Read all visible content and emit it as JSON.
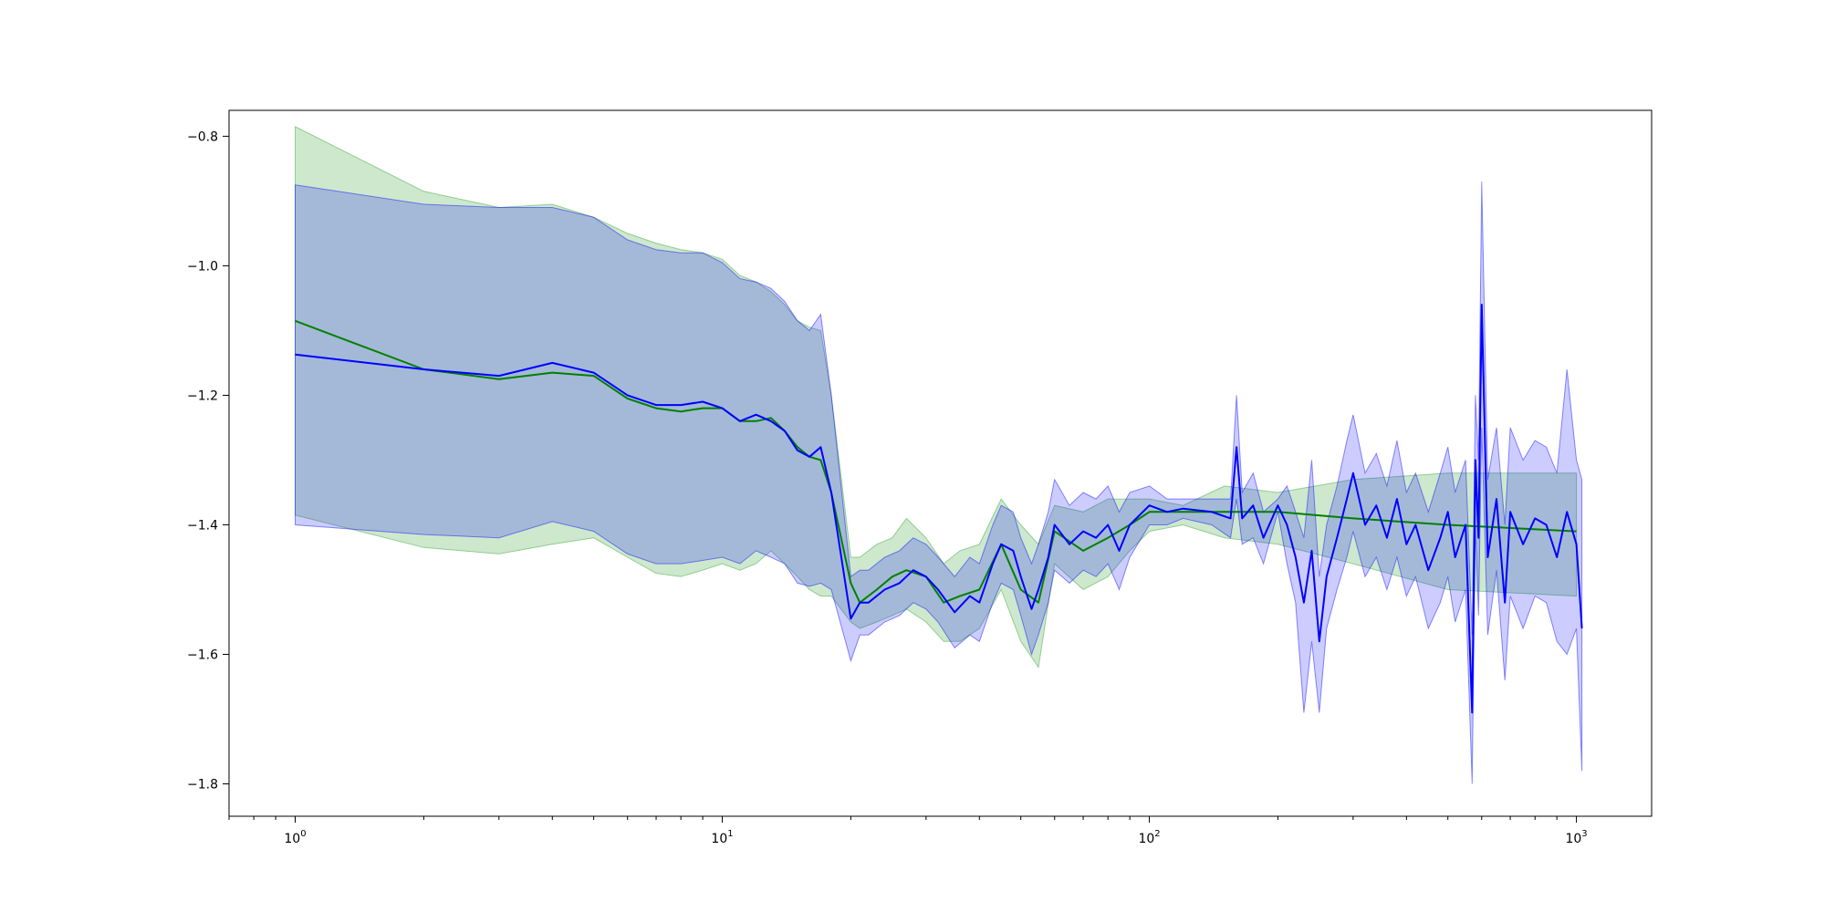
{
  "chart_data": {
    "type": "line",
    "title": "",
    "xlabel": "",
    "ylabel": "",
    "xscale": "log",
    "xlim": [
      0.7,
      1500
    ],
    "ylim": [
      -1.85,
      -0.76
    ],
    "grid": false,
    "legend": "none",
    "x_ticks": [
      {
        "value": 1,
        "base": "10",
        "exp": "0"
      },
      {
        "value": 10,
        "base": "10",
        "exp": "1"
      },
      {
        "value": 100,
        "base": "10",
        "exp": "2"
      },
      {
        "value": 1000,
        "base": "10",
        "exp": "3"
      }
    ],
    "y_ticks": [
      {
        "value": -0.8,
        "label": "−0.8"
      },
      {
        "value": -1.0,
        "label": "−1.0"
      },
      {
        "value": -1.2,
        "label": "−1.2"
      },
      {
        "value": -1.4,
        "label": "−1.4"
      },
      {
        "value": -1.6,
        "label": "−1.6"
      },
      {
        "value": -1.8,
        "label": "−1.8"
      }
    ],
    "series": [
      {
        "color": "#008000",
        "band_color": "#2ca02c",
        "band_opacity": 0.24,
        "x": [
          1,
          2,
          3,
          4,
          5,
          6,
          7,
          8,
          9,
          10,
          11,
          12,
          13,
          14,
          15,
          16,
          17,
          18,
          20,
          21,
          23,
          25,
          27,
          30,
          33,
          36,
          40,
          45,
          50,
          55,
          60,
          70,
          80,
          90,
          100,
          120,
          150,
          200,
          300,
          500,
          1000
        ],
        "y": [
          -1.085,
          -1.16,
          -1.175,
          -1.165,
          -1.17,
          -1.205,
          -1.22,
          -1.225,
          -1.22,
          -1.22,
          -1.24,
          -1.24,
          -1.235,
          -1.255,
          -1.28,
          -1.295,
          -1.3,
          -1.35,
          -1.49,
          -1.52,
          -1.5,
          -1.48,
          -1.47,
          -1.48,
          -1.52,
          -1.51,
          -1.5,
          -1.43,
          -1.5,
          -1.52,
          -1.41,
          -1.44,
          -1.42,
          -1.4,
          -1.38,
          -1.38,
          -1.38,
          -1.38,
          -1.39,
          -1.4,
          -1.41
        ],
        "upper": [
          -0.785,
          -0.885,
          -0.91,
          -0.905,
          -0.925,
          -0.95,
          -0.965,
          -0.975,
          -0.98,
          -0.99,
          -1.015,
          -1.025,
          -1.04,
          -1.06,
          -1.085,
          -1.095,
          -1.1,
          -1.2,
          -1.45,
          -1.45,
          -1.43,
          -1.42,
          -1.39,
          -1.42,
          -1.46,
          -1.44,
          -1.43,
          -1.36,
          -1.4,
          -1.43,
          -1.37,
          -1.38,
          -1.36,
          -1.36,
          -1.36,
          -1.37,
          -1.34,
          -1.35,
          -1.33,
          -1.32,
          -1.32
        ],
        "lower": [
          -1.385,
          -1.435,
          -1.445,
          -1.43,
          -1.42,
          -1.45,
          -1.475,
          -1.48,
          -1.47,
          -1.46,
          -1.47,
          -1.46,
          -1.44,
          -1.46,
          -1.48,
          -1.5,
          -1.51,
          -1.51,
          -1.55,
          -1.56,
          -1.55,
          -1.54,
          -1.53,
          -1.55,
          -1.58,
          -1.58,
          -1.56,
          -1.5,
          -1.58,
          -1.62,
          -1.46,
          -1.5,
          -1.48,
          -1.44,
          -1.41,
          -1.4,
          -1.42,
          -1.43,
          -1.46,
          -1.5,
          -1.51
        ]
      },
      {
        "color": "#0000ff",
        "band_color": "#0000ff",
        "band_opacity": 0.2,
        "x": [
          1,
          2,
          3,
          4,
          5,
          6,
          7,
          8,
          9,
          10,
          11,
          12,
          13,
          14,
          15,
          16,
          17,
          18,
          20,
          21,
          22,
          24,
          26,
          28,
          30,
          32,
          35,
          38,
          40,
          43,
          45,
          48,
          50,
          53,
          55,
          58,
          60,
          65,
          70,
          75,
          80,
          85,
          90,
          100,
          110,
          120,
          140,
          155,
          160,
          165,
          175,
          185,
          200,
          210,
          220,
          230,
          240,
          250,
          260,
          275,
          290,
          300,
          320,
          340,
          360,
          380,
          400,
          420,
          450,
          480,
          500,
          520,
          550,
          570,
          580,
          590,
          600,
          620,
          650,
          680,
          700,
          750,
          800,
          850,
          900,
          950,
          1000,
          1030
        ],
        "y": [
          -1.137,
          -1.16,
          -1.17,
          -1.15,
          -1.165,
          -1.2,
          -1.215,
          -1.215,
          -1.21,
          -1.22,
          -1.24,
          -1.23,
          -1.24,
          -1.255,
          -1.285,
          -1.295,
          -1.28,
          -1.35,
          -1.545,
          -1.52,
          -1.52,
          -1.5,
          -1.49,
          -1.47,
          -1.48,
          -1.5,
          -1.535,
          -1.51,
          -1.52,
          -1.46,
          -1.43,
          -1.44,
          -1.48,
          -1.53,
          -1.5,
          -1.45,
          -1.4,
          -1.43,
          -1.41,
          -1.42,
          -1.4,
          -1.44,
          -1.4,
          -1.37,
          -1.38,
          -1.375,
          -1.38,
          -1.39,
          -1.28,
          -1.39,
          -1.37,
          -1.42,
          -1.37,
          -1.4,
          -1.45,
          -1.52,
          -1.44,
          -1.58,
          -1.48,
          -1.42,
          -1.36,
          -1.32,
          -1.4,
          -1.37,
          -1.42,
          -1.36,
          -1.43,
          -1.4,
          -1.47,
          -1.42,
          -1.38,
          -1.45,
          -1.4,
          -1.69,
          -1.3,
          -1.42,
          -1.06,
          -1.45,
          -1.36,
          -1.52,
          -1.38,
          -1.43,
          -1.39,
          -1.4,
          -1.45,
          -1.38,
          -1.43,
          -1.56
        ],
        "upper": [
          -0.875,
          -0.905,
          -0.91,
          -0.91,
          -0.925,
          -0.96,
          -0.975,
          -0.98,
          -0.98,
          -0.995,
          -1.02,
          -1.025,
          -1.035,
          -1.055,
          -1.085,
          -1.1,
          -1.075,
          -1.2,
          -1.48,
          -1.47,
          -1.47,
          -1.45,
          -1.44,
          -1.42,
          -1.43,
          -1.45,
          -1.48,
          -1.45,
          -1.46,
          -1.4,
          -1.37,
          -1.38,
          -1.42,
          -1.46,
          -1.43,
          -1.38,
          -1.33,
          -1.37,
          -1.35,
          -1.36,
          -1.34,
          -1.38,
          -1.35,
          -1.34,
          -1.36,
          -1.36,
          -1.36,
          -1.36,
          -1.2,
          -1.35,
          -1.32,
          -1.38,
          -1.36,
          -1.34,
          -1.38,
          -1.42,
          -1.3,
          -1.48,
          -1.4,
          -1.34,
          -1.27,
          -1.23,
          -1.32,
          -1.29,
          -1.34,
          -1.27,
          -1.35,
          -1.32,
          -1.38,
          -1.32,
          -1.28,
          -1.35,
          -1.3,
          -1.57,
          -1.2,
          -1.3,
          -0.87,
          -1.33,
          -1.25,
          -1.4,
          -1.25,
          -1.3,
          -1.27,
          -1.28,
          -1.32,
          -1.16,
          -1.3,
          -1.33
        ],
        "lower": [
          -1.4,
          -1.415,
          -1.42,
          -1.395,
          -1.41,
          -1.445,
          -1.46,
          -1.46,
          -1.455,
          -1.45,
          -1.46,
          -1.44,
          -1.45,
          -1.46,
          -1.49,
          -1.495,
          -1.49,
          -1.5,
          -1.61,
          -1.57,
          -1.57,
          -1.55,
          -1.54,
          -1.52,
          -1.53,
          -1.55,
          -1.59,
          -1.57,
          -1.58,
          -1.52,
          -1.49,
          -1.5,
          -1.54,
          -1.6,
          -1.57,
          -1.52,
          -1.47,
          -1.49,
          -1.47,
          -1.48,
          -1.46,
          -1.5,
          -1.45,
          -1.4,
          -1.4,
          -1.39,
          -1.4,
          -1.42,
          -1.36,
          -1.43,
          -1.42,
          -1.46,
          -1.38,
          -1.46,
          -1.52,
          -1.69,
          -1.58,
          -1.69,
          -1.56,
          -1.5,
          -1.45,
          -1.41,
          -1.48,
          -1.45,
          -1.5,
          -1.45,
          -1.51,
          -1.48,
          -1.56,
          -1.52,
          -1.48,
          -1.55,
          -1.5,
          -1.8,
          -1.4,
          -1.54,
          -1.25,
          -1.57,
          -1.47,
          -1.64,
          -1.51,
          -1.56,
          -1.51,
          -1.52,
          -1.58,
          -1.6,
          -1.56,
          -1.78
        ]
      }
    ]
  }
}
